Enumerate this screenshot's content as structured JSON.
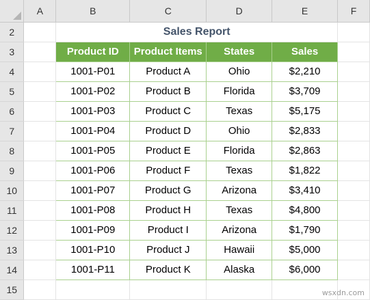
{
  "columns": [
    "A",
    "B",
    "C",
    "D",
    "E",
    "F"
  ],
  "title": "Sales Report",
  "table": {
    "headers": [
      "Product ID",
      "Product Items",
      "States",
      "Sales"
    ],
    "rows": [
      [
        "1001-P01",
        "Product A",
        "Ohio",
        "$2,210"
      ],
      [
        "1001-P02",
        "Product B",
        "Florida",
        "$3,709"
      ],
      [
        "1001-P03",
        "Product C",
        "Texas",
        "$5,175"
      ],
      [
        "1001-P04",
        "Product D",
        "Ohio",
        "$2,833"
      ],
      [
        "1001-P05",
        "Product E",
        "Florida",
        "$2,863"
      ],
      [
        "1001-P06",
        "Product F",
        "Texas",
        "$1,822"
      ],
      [
        "1001-P07",
        "Product G",
        "Arizona",
        "$3,410"
      ],
      [
        "1001-P08",
        "Product H",
        "Texas",
        "$4,800"
      ],
      [
        "1001-P09",
        "Product I",
        "Arizona",
        "$1,790"
      ],
      [
        "1001-P10",
        "Product J",
        "Hawaii",
        "$5,000"
      ],
      [
        "1001-P11",
        "Product K",
        "Alaska",
        "$6,000"
      ]
    ]
  },
  "row_numbers": [
    "2",
    "3",
    "4",
    "5",
    "6",
    "7",
    "8",
    "9",
    "10",
    "11",
    "12",
    "13",
    "14",
    "15"
  ],
  "watermark": "wsxdn.com",
  "colors": {
    "header_fill": "#70ad47",
    "border_green": "#a9d08e",
    "title_color": "#44546a"
  }
}
